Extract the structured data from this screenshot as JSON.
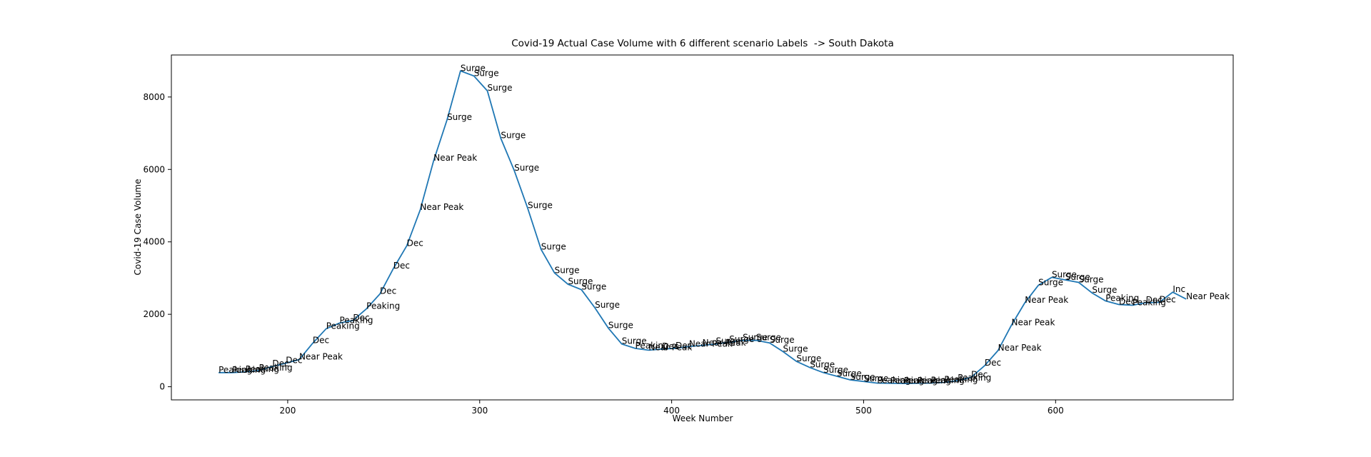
{
  "chart_data": {
    "type": "line",
    "title": "Covid-19 Actual Case Volume with 6 different scenario Labels  -> South Dakota",
    "xlabel": "Week Number",
    "ylabel": "Covid-19 Case Volume",
    "color": "#1f77b4",
    "x": [
      164,
      171,
      178,
      185,
      192,
      199,
      206,
      213,
      220,
      227,
      234,
      241,
      248,
      255,
      262,
      269,
      276,
      283,
      290,
      297,
      304,
      311,
      318,
      325,
      332,
      339,
      346,
      353,
      360,
      367,
      374,
      381,
      388,
      395,
      402,
      409,
      416,
      423,
      430,
      437,
      444,
      451,
      458,
      465,
      472,
      479,
      486,
      493,
      500,
      507,
      514,
      521,
      528,
      535,
      542,
      549,
      556,
      563,
      570,
      577,
      584,
      591,
      598,
      605,
      612,
      619,
      626,
      633,
      640,
      647,
      654,
      661,
      668
    ],
    "values": [
      390,
      390,
      410,
      450,
      560,
      650,
      750,
      1200,
      1600,
      1760,
      1830,
      2150,
      2560,
      3260,
      3890,
      4880,
      6240,
      7370,
      8720,
      8580,
      8170,
      6860,
      5970,
      4930,
      3790,
      3140,
      2830,
      2680,
      2180,
      1620,
      1180,
      1060,
      1010,
      1040,
      1060,
      1110,
      1140,
      1180,
      1230,
      1280,
      1280,
      1210,
      970,
      700,
      530,
      390,
      290,
      190,
      145,
      100,
      95,
      90,
      95,
      100,
      120,
      170,
      260,
      580,
      1000,
      1700,
      2320,
      2800,
      3020,
      2950,
      2880,
      2590,
      2370,
      2270,
      2250,
      2320,
      2330,
      2610,
      2420
    ],
    "point_labels": [
      "Peaking",
      "Peaking",
      "Peaking",
      "Peaking",
      "Dec",
      "Dec",
      "Near Peak",
      "Dec",
      "Peaking",
      "Peaking",
      "Dec",
      "Peaking",
      "Dec",
      "Dec",
      "Dec",
      "Near Peak",
      "Near Peak",
      "Surge",
      "Surge",
      "Surge",
      "Surge",
      "Surge",
      "Surge",
      "Surge",
      "Surge",
      "Surge",
      "Surge",
      "Surge",
      "Surge",
      "Surge",
      "Surge",
      "Peaking",
      "Near Peak",
      "Dec",
      "Dec",
      "Near Peak",
      "Near Peak",
      "Surge",
      "Surge",
      "Surge",
      "Surge",
      "Surge",
      "Surge",
      "Surge",
      "Surge",
      "Surge",
      "Surge",
      "Surge",
      "Surge",
      "Peaking",
      "Peaking",
      "Peaking",
      "Peaking",
      "Peaking",
      "Peaking",
      "Peaking",
      "Dec",
      "Dec",
      "Near Peak",
      "Near Peak",
      "Near Peak",
      "Surge",
      "Surge",
      "Surge",
      "Surge",
      "Surge",
      "Peaking",
      "Dec",
      "Peaking",
      "Dec",
      "Dec",
      "Inc",
      "Near Peak"
    ],
    "xlim": [
      139.4,
      692.5
    ],
    "ylim": [
      -363,
      9160
    ],
    "xticks": [
      200,
      300,
      400,
      500,
      600
    ],
    "yticks": [
      0,
      2000,
      4000,
      6000,
      8000
    ]
  }
}
